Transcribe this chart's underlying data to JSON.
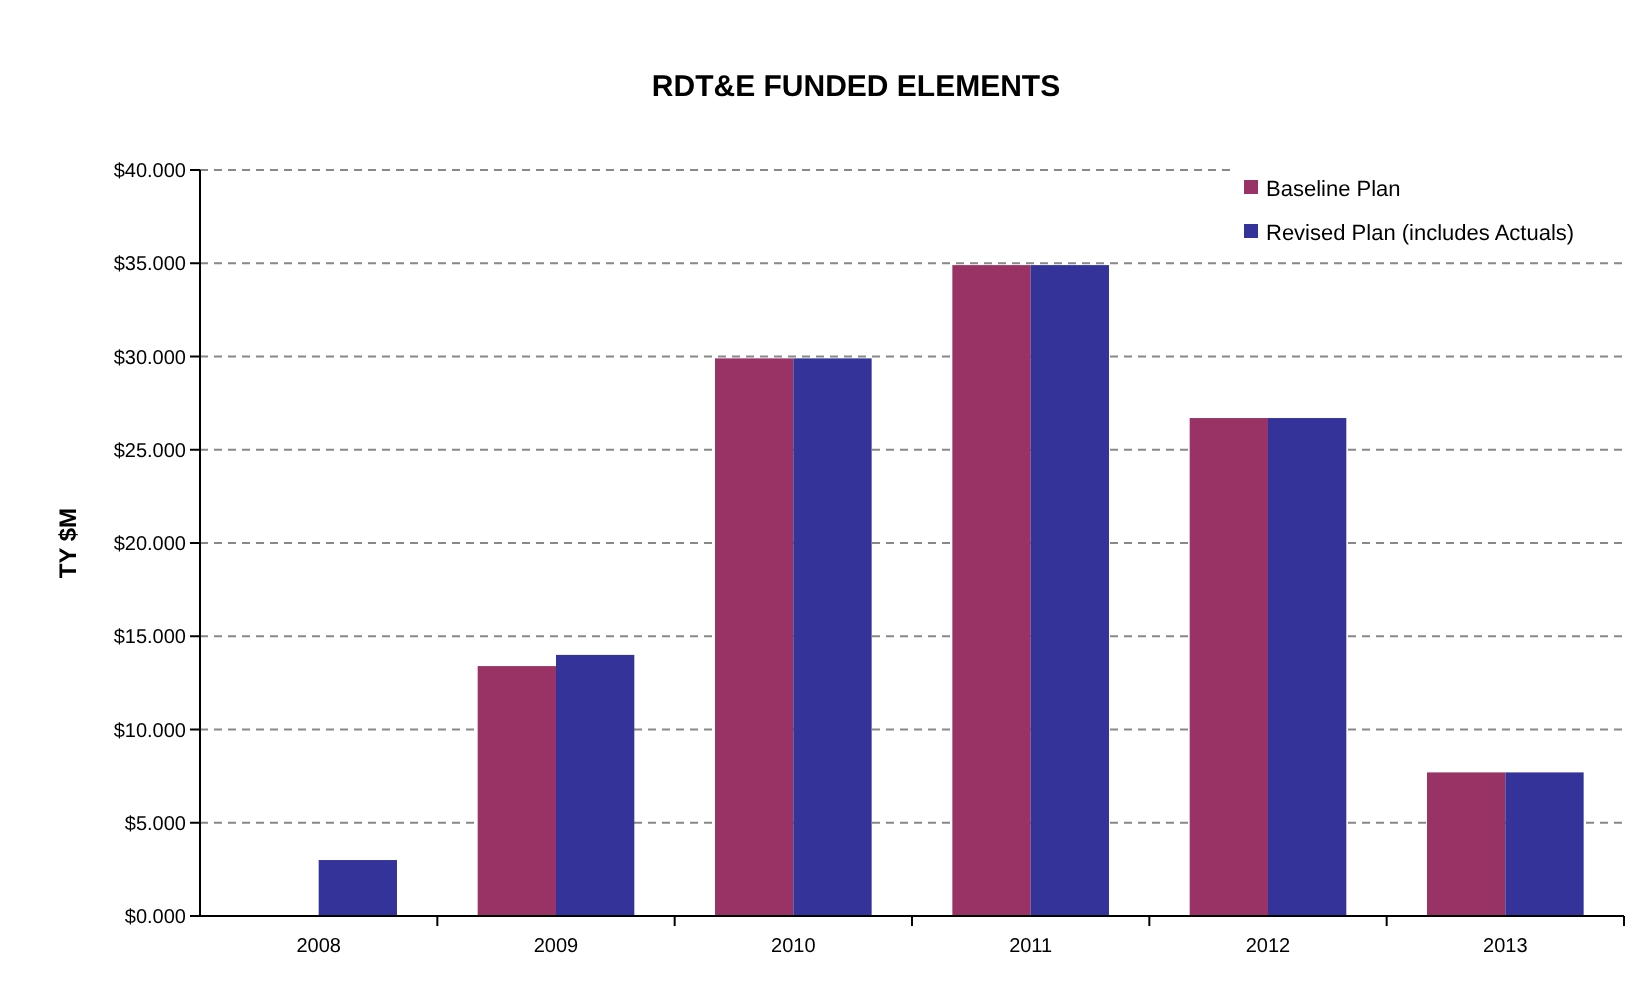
{
  "chart_data": {
    "type": "bar",
    "title": "RDT&E FUNDED ELEMENTS",
    "ylabel": "TY $M",
    "categories": [
      "2008",
      "2009",
      "2010",
      "2011",
      "2012",
      "2013"
    ],
    "series": [
      {
        "name": "Baseline Plan",
        "color": "#993366",
        "values": [
          null,
          13.4,
          29.9,
          34.9,
          26.7,
          7.7
        ]
      },
      {
        "name": "Revised Plan (includes Actuals)",
        "color": "#333399",
        "values": [
          3.0,
          14.0,
          29.9,
          34.9,
          26.7,
          7.7
        ]
      }
    ],
    "ylim": [
      0,
      40
    ],
    "yticks": [
      {
        "value": 0,
        "label": "$0.000"
      },
      {
        "value": 5,
        "label": "$5.000"
      },
      {
        "value": 10,
        "label": "$10.000"
      },
      {
        "value": 15,
        "label": "$15.000"
      },
      {
        "value": 20,
        "label": "$20.000"
      },
      {
        "value": 25,
        "label": "$25.000"
      },
      {
        "value": 30,
        "label": "$30.000"
      },
      {
        "value": 35,
        "label": "$35.000"
      },
      {
        "value": 40,
        "label": "$40.000"
      }
    ],
    "grid": "y",
    "legend": "top right"
  }
}
